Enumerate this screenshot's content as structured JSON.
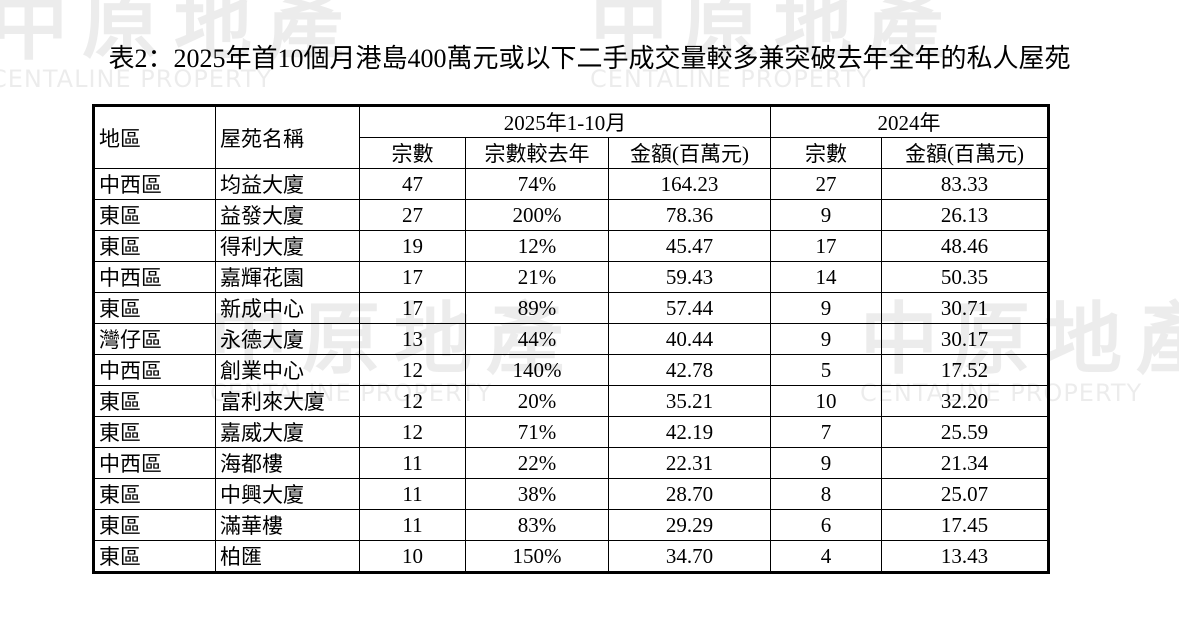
{
  "title": "表2：2025年首10個月港島400萬元或以下二手成交量較多兼突破去年全年的私人屋苑",
  "watermark": {
    "brand_cn": "中原地產",
    "brand_en": "CENTALINE PROPERTY"
  },
  "table": {
    "header": {
      "district": "地區",
      "estate": "屋苑名稱",
      "group_2025": "2025年1-10月",
      "group_2024": "2024年",
      "sub_2025": [
        "宗數",
        "宗數較去年",
        "金額(百萬元)"
      ],
      "sub_2024": [
        "宗數",
        "金額(百萬元)"
      ]
    },
    "rows": [
      [
        "中西區",
        "均益大廈",
        "47",
        "74%",
        "164.23",
        "27",
        "83.33"
      ],
      [
        "東區",
        "益發大廈",
        "27",
        "200%",
        "78.36",
        "9",
        "26.13"
      ],
      [
        "東區",
        "得利大廈",
        "19",
        "12%",
        "45.47",
        "17",
        "48.46"
      ],
      [
        "中西區",
        "嘉輝花園",
        "17",
        "21%",
        "59.43",
        "14",
        "50.35"
      ],
      [
        "東區",
        "新成中心",
        "17",
        "89%",
        "57.44",
        "9",
        "30.71"
      ],
      [
        "灣仔區",
        "永德大廈",
        "13",
        "44%",
        "40.44",
        "9",
        "30.17"
      ],
      [
        "中西區",
        "創業中心",
        "12",
        "140%",
        "42.78",
        "5",
        "17.52"
      ],
      [
        "東區",
        "富利來大廈",
        "12",
        "20%",
        "35.21",
        "10",
        "32.20"
      ],
      [
        "東區",
        "嘉威大廈",
        "12",
        "71%",
        "42.19",
        "7",
        "25.59"
      ],
      [
        "中西區",
        "海都樓",
        "11",
        "22%",
        "22.31",
        "9",
        "21.34"
      ],
      [
        "東區",
        "中興大廈",
        "11",
        "38%",
        "28.70",
        "8",
        "25.07"
      ],
      [
        "東區",
        "滿華樓",
        "11",
        "83%",
        "29.29",
        "6",
        "17.45"
      ],
      [
        "東區",
        "柏匯",
        "10",
        "150%",
        "34.70",
        "4",
        "13.43"
      ]
    ]
  }
}
